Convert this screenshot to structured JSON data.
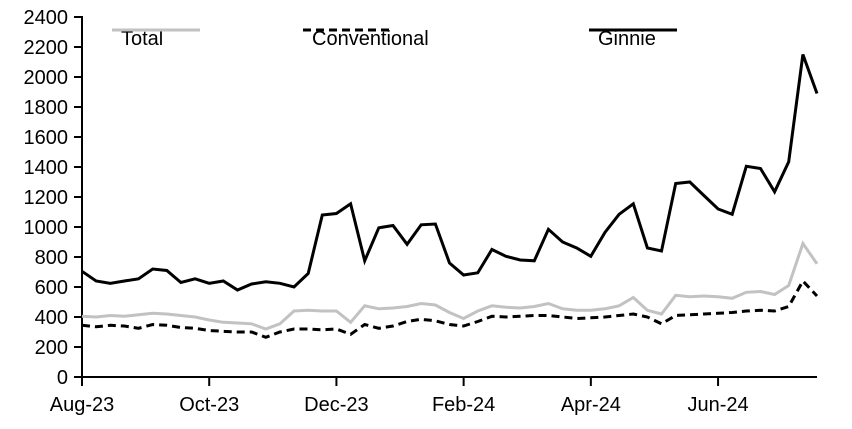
{
  "chart_data": {
    "type": "line",
    "title": "",
    "x_unit": "week",
    "n_points": 53,
    "x_range_note": "weekly observations from Aug-23 through late Jul-24",
    "x_tick_labels": [
      "Aug-23",
      "Oct-23",
      "Dec-23",
      "Feb-24",
      "Apr-24",
      "Jun-24"
    ],
    "x_tick_positions_weeks": [
      0,
      9,
      18,
      27,
      36,
      45
    ],
    "ylim": [
      0,
      2400
    ],
    "y_tick_step": 200,
    "y_tick_labels": [
      "0",
      "200",
      "400",
      "600",
      "800",
      "1000",
      "1200",
      "1400",
      "1600",
      "1800",
      "2000",
      "2200",
      "2400"
    ],
    "grid": false,
    "legend_position": "top-inside",
    "axis_color": "#000000",
    "background_color": "#ffffff",
    "series": [
      {
        "name": "Total",
        "color": "#c2c2c2",
        "dash": "solid",
        "values": [
          405,
          400,
          410,
          405,
          415,
          425,
          420,
          410,
          400,
          380,
          365,
          360,
          355,
          320,
          355,
          440,
          445,
          440,
          440,
          365,
          475,
          455,
          460,
          470,
          490,
          480,
          430,
          390,
          440,
          475,
          465,
          460,
          470,
          490,
          455,
          445,
          445,
          455,
          475,
          530,
          445,
          420,
          545,
          535,
          540,
          535,
          525,
          565,
          570,
          550,
          610,
          890,
          755
        ]
      },
      {
        "name": "Conventional",
        "color": "#000000",
        "dash": "dashed",
        "values": [
          345,
          335,
          345,
          340,
          325,
          350,
          345,
          330,
          325,
          310,
          305,
          300,
          300,
          265,
          300,
          320,
          320,
          315,
          320,
          285,
          350,
          325,
          340,
          370,
          385,
          375,
          350,
          340,
          370,
          405,
          400,
          405,
          410,
          410,
          400,
          390,
          395,
          400,
          410,
          420,
          400,
          355,
          410,
          415,
          420,
          425,
          430,
          440,
          445,
          440,
          470,
          640,
          540
        ]
      },
      {
        "name": "Ginnie",
        "color": "#000000",
        "dash": "solid",
        "values": [
          705,
          640,
          625,
          640,
          655,
          720,
          710,
          630,
          655,
          625,
          640,
          580,
          620,
          635,
          625,
          600,
          690,
          1080,
          1090,
          1155,
          775,
          995,
          1010,
          885,
          1015,
          1020,
          760,
          680,
          695,
          850,
          805,
          780,
          775,
          985,
          900,
          860,
          805,
          965,
          1085,
          1155,
          860,
          840,
          1290,
          1300,
          1210,
          1120,
          1085,
          1405,
          1390,
          1235,
          1435,
          2150,
          1890
        ]
      }
    ]
  }
}
